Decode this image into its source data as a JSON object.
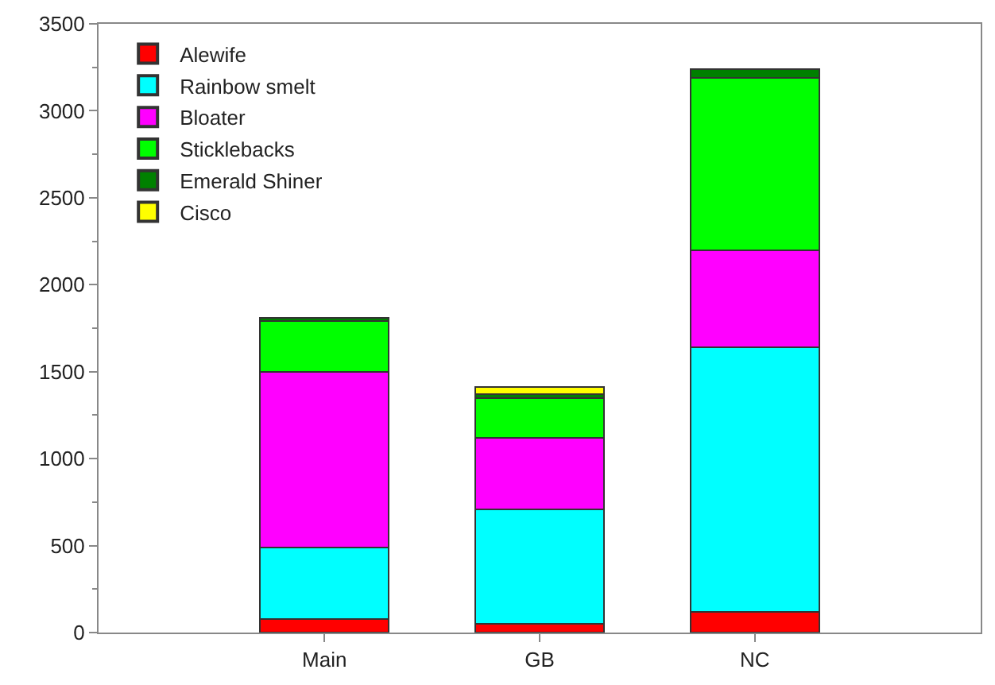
{
  "chart_data": {
    "type": "bar",
    "stacked": true,
    "categories": [
      "Main",
      "GB",
      "NC"
    ],
    "series": [
      {
        "name": "Alewife",
        "color": "#ff0000",
        "values": [
          80,
          50,
          120
        ]
      },
      {
        "name": "Rainbow smelt",
        "color": "#00ffff",
        "values": [
          410,
          660,
          1520
        ]
      },
      {
        "name": "Bloater",
        "color": "#ff00ff",
        "values": [
          1010,
          410,
          560
        ]
      },
      {
        "name": "Sticklebacks",
        "color": "#00ff00",
        "values": [
          290,
          230,
          990
        ]
      },
      {
        "name": "Emerald Shiner",
        "color": "#008000",
        "values": [
          20,
          20,
          50
        ]
      },
      {
        "name": "Cisco",
        "color": "#ffff00",
        "values": [
          null,
          40,
          null
        ]
      }
    ],
    "ylim": [
      0,
      3500
    ],
    "yticks": [
      0,
      500,
      1000,
      1500,
      2000,
      2500,
      3000,
      3500
    ],
    "legend": "top left"
  }
}
